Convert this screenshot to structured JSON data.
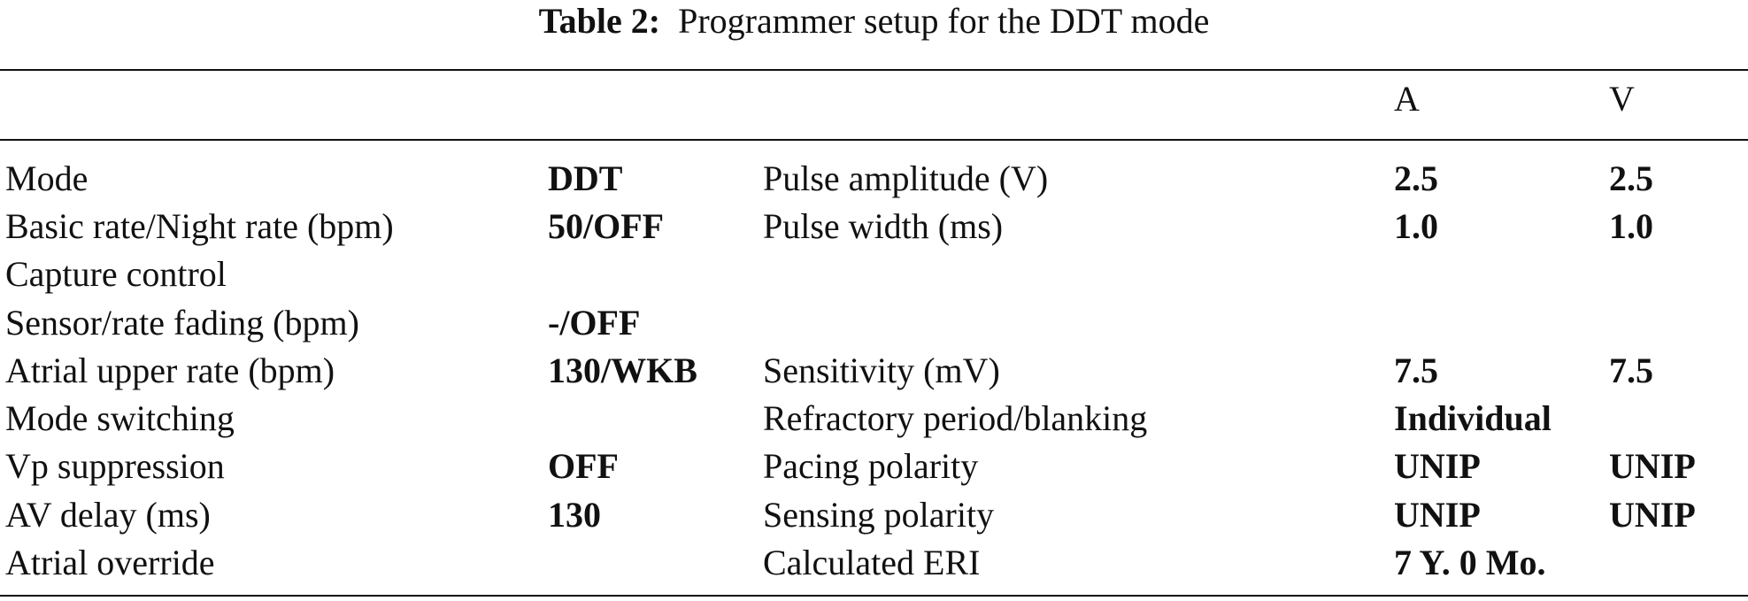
{
  "caption": {
    "label": "Table 2:",
    "text": "Programmer setup for the DDT mode"
  },
  "columns": {
    "a": "A",
    "v": "V"
  },
  "rows": [
    {
      "label1": "Mode",
      "value1": "DDT",
      "label2": "Pulse amplitude (V)",
      "a": "2.5",
      "v": "2.5"
    },
    {
      "label1": "Basic rate/Night rate (bpm)",
      "value1": "50/OFF",
      "label2": "Pulse width (ms)",
      "a": "1.0",
      "v": "1.0"
    },
    {
      "label1": "Capture control",
      "value1": "",
      "label2": "",
      "a": "",
      "v": ""
    },
    {
      "label1": "Sensor/rate fading (bpm)",
      "value1": "-/OFF",
      "label2": "",
      "a": "",
      "v": ""
    },
    {
      "label1": "Atrial upper rate (bpm)",
      "value1": "130/WKB",
      "label2": "Sensitivity (mV)",
      "a": "7.5",
      "v": "7.5"
    },
    {
      "label1": "Mode switching",
      "value1": "",
      "label2": "Refractory period/blanking",
      "a": "Individual",
      "v": ""
    },
    {
      "label1": "Vp suppression",
      "value1": "OFF",
      "label2": "Pacing polarity",
      "a": "UNIP",
      "v": "UNIP"
    },
    {
      "label1": "AV delay (ms)",
      "value1": "130",
      "label2": "Sensing polarity",
      "a": "UNIP",
      "v": "UNIP"
    },
    {
      "label1": "Atrial override",
      "value1": "",
      "label2": "Calculated ERI",
      "a": "7 Y. 0 Mo.",
      "v": ""
    }
  ]
}
